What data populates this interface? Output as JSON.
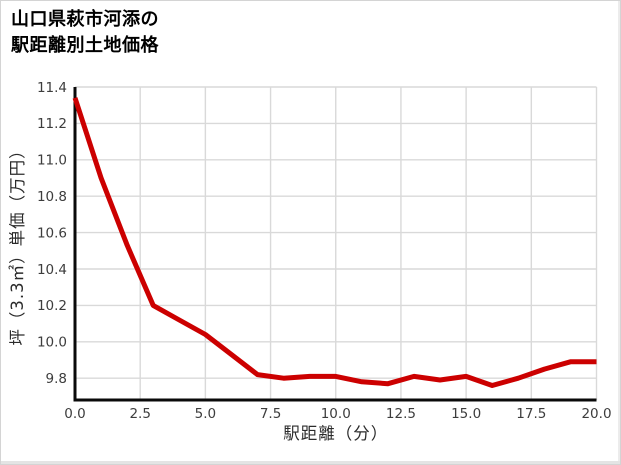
{
  "title": {
    "line1": "山口県萩市河添の",
    "line2": "駅距離別土地価格"
  },
  "chart_data": {
    "type": "line",
    "title": "山口県萩市河添の駅距離別土地価格",
    "xlabel": "駅距離（分）",
    "ylabel": "坪（3.3㎡）単価（万円）",
    "x": [
      0,
      1,
      2,
      3,
      4,
      5,
      6,
      7,
      8,
      9,
      10,
      11,
      12,
      13,
      14,
      15,
      16,
      17,
      18,
      19,
      20
    ],
    "values": [
      11.34,
      10.9,
      10.53,
      10.2,
      10.12,
      10.04,
      9.93,
      9.82,
      9.8,
      9.81,
      9.81,
      9.78,
      9.77,
      9.81,
      9.79,
      9.81,
      9.76,
      9.8,
      9.85,
      9.89,
      9.89
    ],
    "x_tick_labels": [
      "0.0",
      "2.5",
      "5.0",
      "7.5",
      "10.0",
      "12.5",
      "15.0",
      "17.5",
      "20.0"
    ],
    "x_tick_values": [
      0,
      2.5,
      5,
      7.5,
      10,
      12.5,
      15,
      17.5,
      20
    ],
    "y_tick_labels": [
      "11.4",
      "11.2",
      "11.0",
      "10.8",
      "10.6",
      "10.4",
      "10.2",
      "10.0",
      "9.8"
    ],
    "y_tick_values": [
      11.4,
      11.2,
      11.0,
      10.8,
      10.6,
      10.4,
      10.2,
      10.0,
      9.8
    ],
    "xlim": [
      0,
      20
    ],
    "ylim": [
      9.67,
      11.4
    ],
    "grid": true,
    "legend": "none",
    "line_color": "#cc0000",
    "grid_color": "#d9d9d9",
    "spine_color": "#0a0a0a",
    "tick_color": "#3d3d3d"
  }
}
